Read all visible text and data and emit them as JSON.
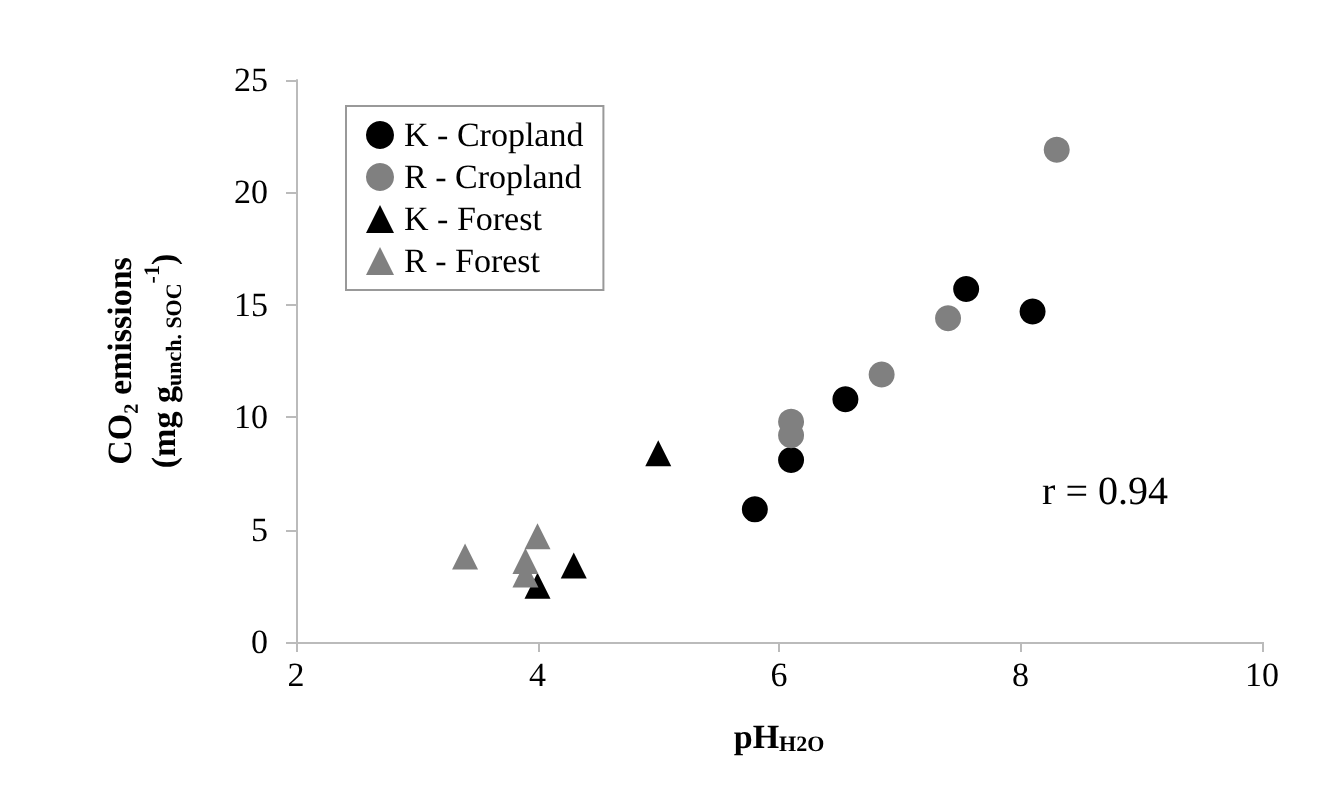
{
  "chart_data": {
    "type": "scatter",
    "xlabel": "pH$_{H2O}$",
    "ylabel": "CO₂ emissions\n(mg g$_{unch. SOC}$$^{-1}$)",
    "xlim": [
      2,
      10
    ],
    "xticks": [
      2,
      4,
      6,
      8,
      10
    ],
    "ylim": [
      0,
      25
    ],
    "yticks": [
      0,
      5,
      10,
      15,
      20,
      25
    ],
    "grid": false,
    "legend": "top left",
    "annotations": [
      "r = 0.94"
    ],
    "series": [
      {
        "name": "K - Cropland",
        "color": "#000000",
        "marker": "circle",
        "x": [
          5.8,
          6.1,
          6.55,
          7.55,
          8.1
        ],
        "values": [
          5.9,
          8.1,
          10.8,
          15.7,
          14.7
        ]
      },
      {
        "name": "R - Cropland",
        "color": "#808080",
        "marker": "circle",
        "x": [
          6.1,
          6.1,
          6.85,
          7.4,
          8.3
        ],
        "values": [
          9.8,
          9.2,
          11.9,
          14.4,
          21.9
        ]
      },
      {
        "name": "K - Forest",
        "color": "#000000",
        "marker": "triangle",
        "x": [
          5.0,
          4.3,
          4.0
        ],
        "values": [
          8.4,
          3.4,
          2.5
        ]
      },
      {
        "name": "R - Forest",
        "color": "#808080",
        "marker": "triangle",
        "x": [
          3.4,
          3.9,
          3.9,
          4.0
        ],
        "values": [
          3.8,
          3.6,
          3.0,
          4.7
        ]
      }
    ]
  }
}
